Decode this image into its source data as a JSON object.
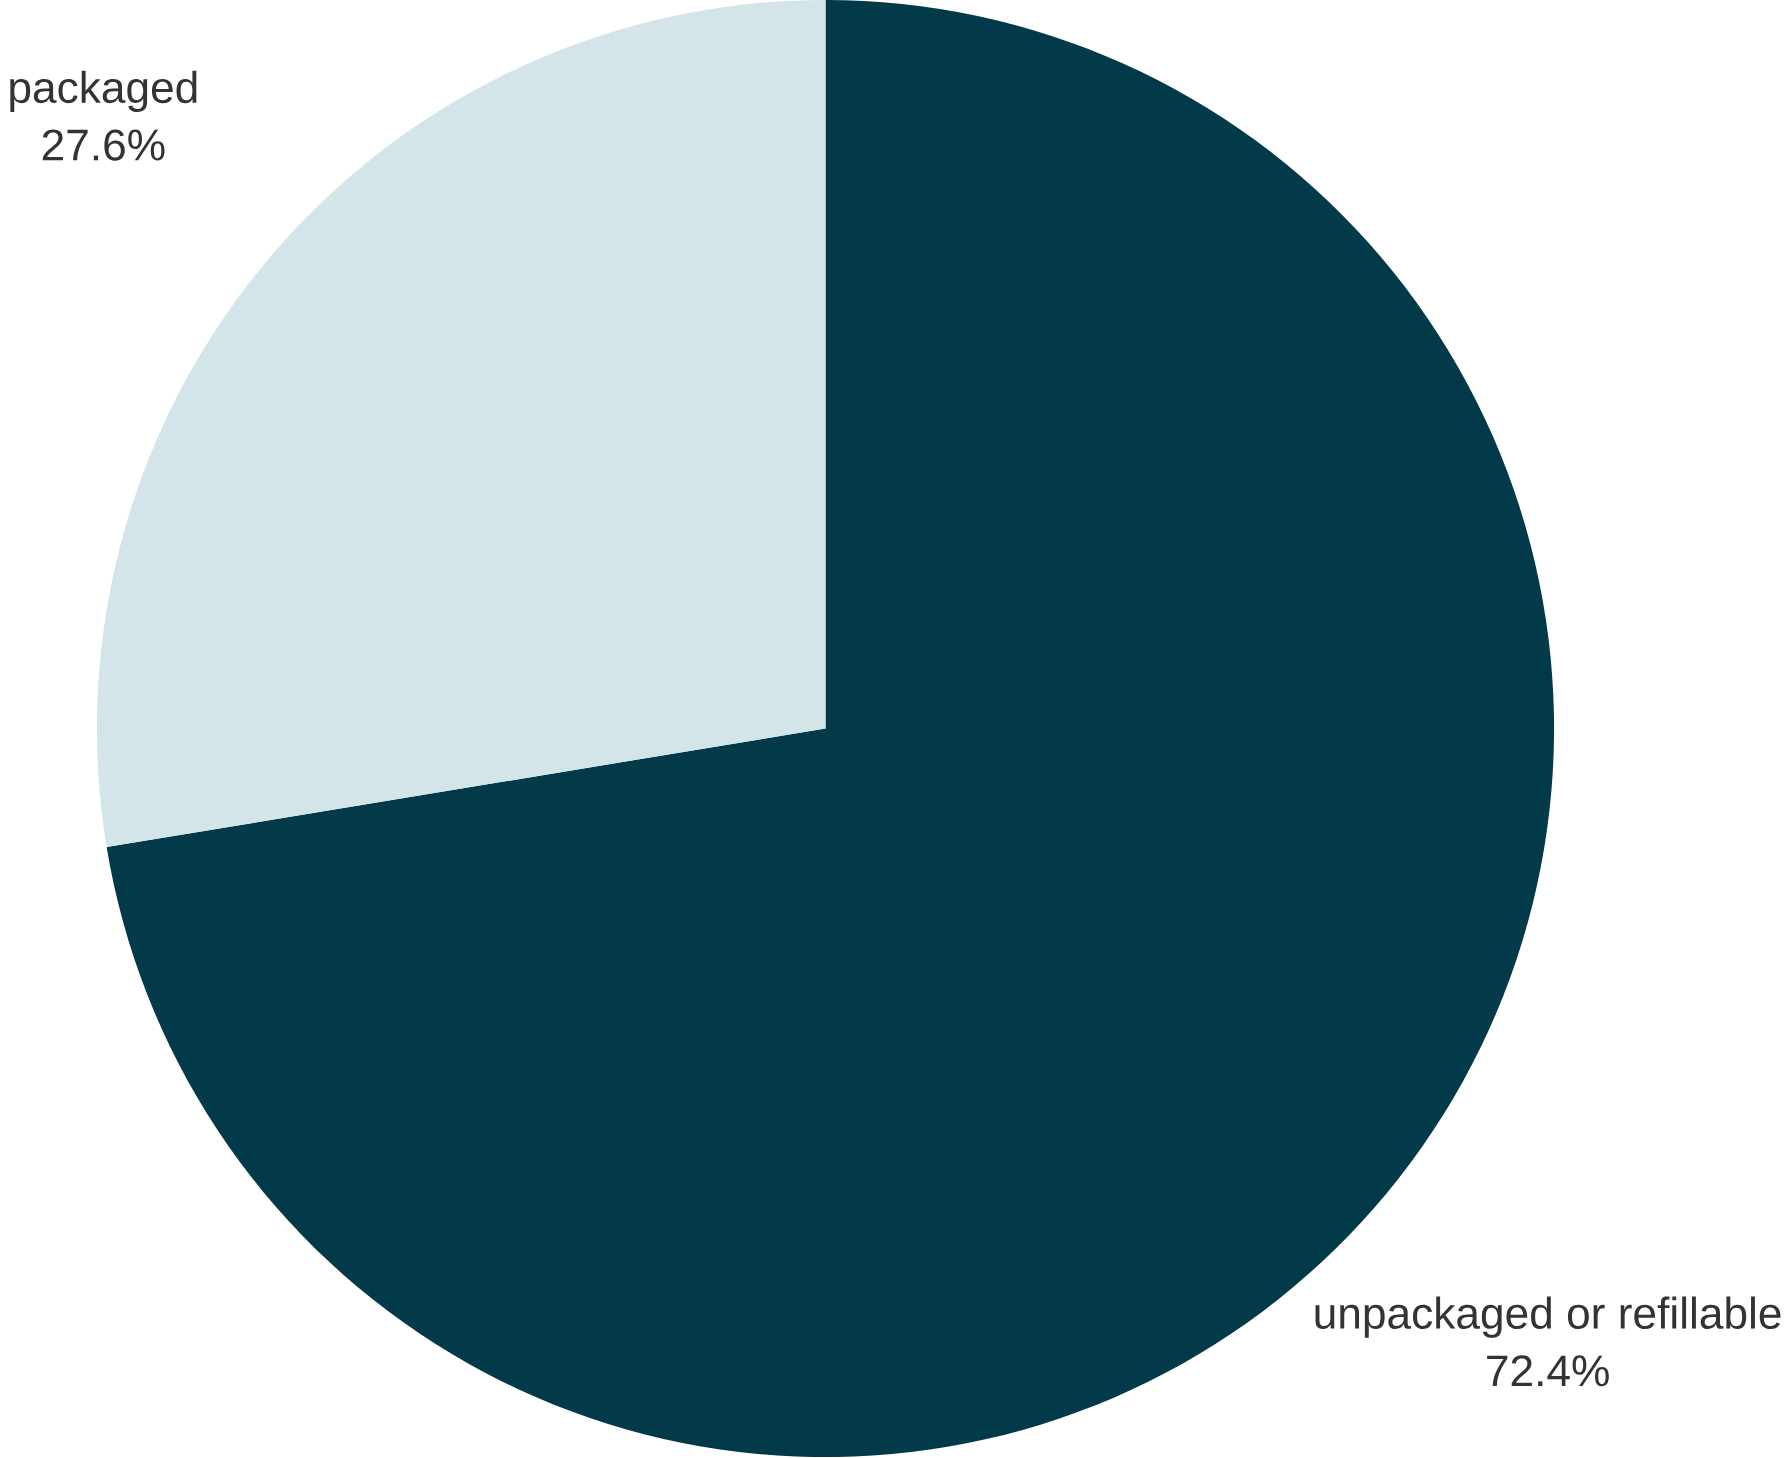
{
  "chart_data": {
    "type": "pie",
    "categories": [
      "unpackaged or refillable",
      "packaged"
    ],
    "values": [
      72.4,
      27.6
    ],
    "colors": [
      "#023a4a",
      "#d3e5e9"
    ],
    "value_labels": [
      "72.4%",
      "27.6%"
    ]
  }
}
